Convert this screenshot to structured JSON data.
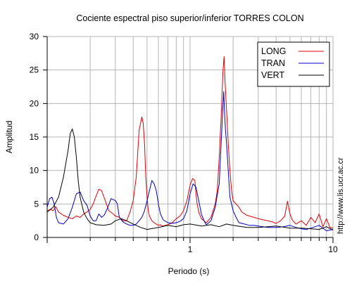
{
  "chart_data": {
    "type": "line",
    "title": "Cociente espectral piso superior/inferior  TORRES COLON",
    "xlabel": "Periodo (s)",
    "ylabel": "Amplitud",
    "x_scale": "log",
    "xlim": [
      0.1,
      10
    ],
    "ylim": [
      0,
      30
    ],
    "x_tick_labels": [
      "1",
      "10"
    ],
    "x_tick_values": [
      1,
      10
    ],
    "y_tick_labels": [
      "0",
      "5",
      "10",
      "15",
      "20",
      "25",
      "30"
    ],
    "y_tick_values": [
      0,
      5,
      10,
      15,
      20,
      25,
      30
    ],
    "grid": true,
    "legend_position": "top-right",
    "side_note": "http://www.lis.ucr.ac.cr",
    "series": [
      {
        "name": "LONG",
        "color": "#e00000",
        "x": [
          0.1,
          0.105,
          0.11,
          0.115,
          0.12,
          0.13,
          0.14,
          0.15,
          0.16,
          0.17,
          0.18,
          0.19,
          0.2,
          0.21,
          0.22,
          0.23,
          0.24,
          0.25,
          0.27,
          0.29,
          0.3,
          0.32,
          0.34,
          0.36,
          0.38,
          0.4,
          0.42,
          0.44,
          0.46,
          0.47,
          0.48,
          0.49,
          0.5,
          0.51,
          0.52,
          0.54,
          0.56,
          0.58,
          0.6,
          0.62,
          0.64,
          0.67,
          0.7,
          0.75,
          0.8,
          0.85,
          0.9,
          0.95,
          1.0,
          1.04,
          1.08,
          1.1,
          1.12,
          1.15,
          1.2,
          1.25,
          1.3,
          1.4,
          1.5,
          1.55,
          1.6,
          1.65,
          1.7,
          1.73,
          1.76,
          1.79,
          1.82,
          1.85,
          1.9,
          1.95,
          2.0,
          2.1,
          2.2,
          2.3,
          2.5,
          2.8,
          3.0,
          3.3,
          3.5,
          3.8,
          4.0,
          4.3,
          4.6,
          4.8,
          5.0,
          5.2,
          5.5,
          6.0,
          6.5,
          7.0,
          7.5,
          8.0,
          8.5,
          9.0,
          9.5,
          10.0
        ],
        "y": [
          4.0,
          4.2,
          4.0,
          4.6,
          3.8,
          3.3,
          3.0,
          2.8,
          3.2,
          3.0,
          3.5,
          3.8,
          4.2,
          5.0,
          6.2,
          7.2,
          7.0,
          6.0,
          4.0,
          3.5,
          3.2,
          3.0,
          2.5,
          2.5,
          3.8,
          5.5,
          9.0,
          16.0,
          18.0,
          17.0,
          14.0,
          9.0,
          6.0,
          4.0,
          3.2,
          2.5,
          2.2,
          2.0,
          1.8,
          1.9,
          1.7,
          1.8,
          1.9,
          2.2,
          2.8,
          3.2,
          4.0,
          5.5,
          7.8,
          8.8,
          8.5,
          6.5,
          5.0,
          3.8,
          2.8,
          2.5,
          2.2,
          3.0,
          5.0,
          7.0,
          12.0,
          18.0,
          25.0,
          27.0,
          23.0,
          20.0,
          17.0,
          14.0,
          10.0,
          7.0,
          5.5,
          5.0,
          4.5,
          3.8,
          3.3,
          3.0,
          2.8,
          2.6,
          2.5,
          2.3,
          2.1,
          2.5,
          3.2,
          5.4,
          3.5,
          2.6,
          2.0,
          2.5,
          1.8,
          3.0,
          2.2,
          3.5,
          1.6,
          2.8,
          1.5,
          1.4
        ]
      },
      {
        "name": "TRAN",
        "color": "#0000c8",
        "x": [
          0.1,
          0.104,
          0.108,
          0.112,
          0.116,
          0.12,
          0.13,
          0.14,
          0.15,
          0.16,
          0.17,
          0.18,
          0.19,
          0.2,
          0.21,
          0.22,
          0.23,
          0.24,
          0.25,
          0.26,
          0.28,
          0.3,
          0.31,
          0.32,
          0.34,
          0.36,
          0.38,
          0.4,
          0.42,
          0.44,
          0.46,
          0.48,
          0.5,
          0.52,
          0.54,
          0.56,
          0.58,
          0.6,
          0.62,
          0.65,
          0.7,
          0.75,
          0.8,
          0.85,
          0.9,
          0.95,
          1.0,
          1.05,
          1.1,
          1.15,
          1.2,
          1.25,
          1.3,
          1.4,
          1.5,
          1.6,
          1.65,
          1.7,
          1.72,
          1.74,
          1.77,
          1.8,
          1.85,
          1.9,
          2.0,
          2.1,
          2.2,
          2.4,
          2.6,
          2.8,
          3.0,
          3.5,
          4.0,
          4.5,
          5.0,
          5.5,
          6.0,
          6.5,
          7.0,
          8.0,
          9.0,
          10.0
        ],
        "y": [
          4.5,
          5.8,
          6.0,
          5.0,
          3.0,
          2.2,
          2.0,
          2.8,
          4.5,
          6.5,
          6.8,
          5.5,
          4.8,
          3.2,
          2.5,
          2.5,
          3.5,
          3.0,
          3.3,
          4.0,
          5.8,
          5.5,
          5.0,
          3.0,
          2.3,
          2.0,
          1.8,
          1.8,
          2.0,
          2.5,
          3.0,
          4.0,
          5.5,
          7.0,
          8.5,
          8.0,
          7.0,
          5.0,
          3.5,
          2.6,
          2.2,
          2.1,
          2.2,
          2.4,
          2.8,
          4.0,
          6.5,
          8.0,
          7.5,
          5.5,
          3.5,
          2.5,
          1.9,
          2.5,
          4.5,
          8.0,
          14.0,
          20.0,
          21.8,
          19.0,
          16.0,
          14.0,
          10.0,
          6.0,
          4.0,
          3.0,
          2.2,
          2.0,
          1.8,
          1.8,
          1.7,
          1.5,
          1.5,
          1.6,
          1.8,
          1.5,
          1.3,
          1.2,
          1.4,
          1.8,
          1.0,
          1.2
        ]
      },
      {
        "name": "VERT",
        "color": "#000000",
        "x": [
          0.1,
          0.11,
          0.12,
          0.13,
          0.14,
          0.145,
          0.15,
          0.155,
          0.16,
          0.165,
          0.17,
          0.18,
          0.19,
          0.2,
          0.22,
          0.25,
          0.28,
          0.3,
          0.33,
          0.35,
          0.4,
          0.45,
          0.5,
          0.6,
          0.7,
          0.8,
          0.9,
          1.0,
          1.2,
          1.4,
          1.6,
          1.8,
          2.0,
          2.5,
          3.0,
          4.0,
          5.0,
          6.0,
          7.0,
          8.0,
          9.0,
          10.0
        ],
        "y": [
          3.8,
          4.5,
          6.0,
          9.0,
          13.0,
          15.5,
          16.2,
          15.0,
          12.0,
          8.5,
          6.0,
          3.8,
          2.8,
          2.2,
          1.9,
          1.8,
          2.0,
          2.5,
          2.8,
          2.6,
          2.0,
          1.5,
          1.2,
          1.5,
          1.8,
          1.6,
          1.9,
          2.0,
          1.7,
          1.9,
          1.6,
          2.0,
          1.8,
          1.5,
          1.5,
          1.7,
          1.4,
          1.4,
          1.3,
          1.2,
          1.6,
          1.1
        ]
      }
    ]
  }
}
